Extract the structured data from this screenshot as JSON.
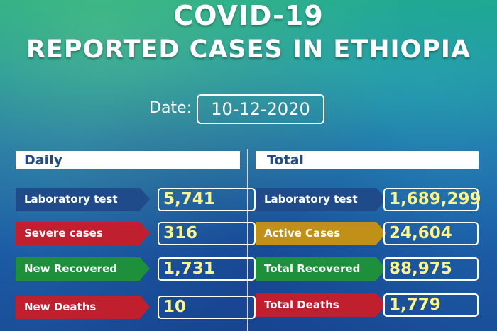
{
  "header": {
    "title_line1": "COVID-19",
    "title_line2": "REPORTED CASES IN ETHIOPIA"
  },
  "date": {
    "label": "Date:",
    "value": "10-12-2020"
  },
  "daily": {
    "heading": "Daily",
    "rows": [
      {
        "label": "Laboratory test",
        "value": "5,741",
        "color": "#1f4b8a"
      },
      {
        "label": "Severe cases",
        "value": "316",
        "color": "#c0202e"
      },
      {
        "label": "New Recovered",
        "value": "1,731",
        "color": "#1e8f3a"
      },
      {
        "label": "New Deaths",
        "value": "10",
        "color": "#c0202e"
      }
    ]
  },
  "total": {
    "heading": "Total",
    "rows": [
      {
        "label": "Laboratory test",
        "value": "1,689,299",
        "color": "#1f4b8a"
      },
      {
        "label": "Active Cases",
        "value": "24,604",
        "color": "#c09018"
      },
      {
        "label": "Total Recovered",
        "value": "88,975",
        "color": "#1e8f3a"
      },
      {
        "label": "Total Deaths",
        "value": "1,779",
        "color": "#c0202e"
      }
    ]
  },
  "colors": {
    "value_text": "#fff48a",
    "heading_text": "#1f4d8c"
  }
}
